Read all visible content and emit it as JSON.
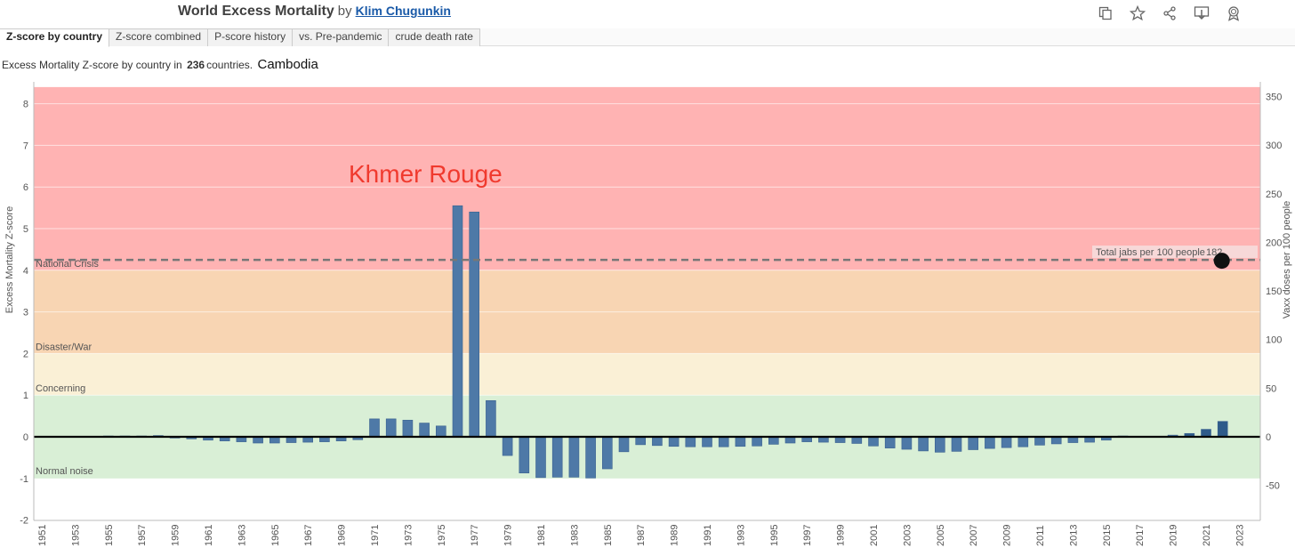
{
  "header": {
    "title": "World Excess Mortality",
    "by": "by",
    "author": "Klim Chugunkin"
  },
  "toolbar": {
    "icons": [
      "copy-icon",
      "star-icon",
      "share-icon",
      "download-icon",
      "award-icon"
    ]
  },
  "tabs": [
    {
      "label": "Z-score by country",
      "active": true
    },
    {
      "label": "Z-score combined",
      "active": false
    },
    {
      "label": "P-score history",
      "active": false
    },
    {
      "label": "vs. Pre-pandemic",
      "active": false
    },
    {
      "label": "crude death rate",
      "active": false
    }
  ],
  "subtitle": {
    "prefix": "Excess Mortality Z-score by country in",
    "count": "236",
    "suffix": "countries.",
    "country": "Cambodia"
  },
  "chart_data": {
    "type": "bar",
    "title": "Khmer Rouge",
    "ylabel": "Excess Mortality Z-score",
    "y2label": "Vaxx doses per 100 people",
    "ylim": [
      -2.1,
      8.4
    ],
    "y2lim": [
      -62,
      365
    ],
    "yticks": [
      8,
      7,
      6,
      5,
      4,
      3,
      2,
      1,
      0,
      -1,
      -2
    ],
    "y2ticks": [
      350,
      300,
      250,
      200,
      150,
      100,
      50,
      0,
      -50
    ],
    "bands": [
      {
        "label": "National Crisis",
        "from": 4,
        "to": 8.4,
        "color": "#ffb3b3"
      },
      {
        "label": "Disaster/War",
        "from": 2,
        "to": 4,
        "color": "#f8d5b3"
      },
      {
        "label": "Concerning",
        "from": 1,
        "to": 2,
        "color": "#faf0d6"
      },
      {
        "label": "Normal noise",
        "from": -1,
        "to": 1,
        "color": "#d9efd6"
      }
    ],
    "reference_line": {
      "label": "Total jabs per 100 people",
      "value_label": "182",
      "value": 182
    },
    "marker": {
      "year": 2022,
      "value": 182
    },
    "x": [
      1951,
      1952,
      1953,
      1954,
      1955,
      1956,
      1957,
      1958,
      1959,
      1960,
      1961,
      1962,
      1963,
      1964,
      1965,
      1966,
      1967,
      1968,
      1969,
      1970,
      1971,
      1972,
      1973,
      1974,
      1975,
      1976,
      1977,
      1978,
      1979,
      1980,
      1981,
      1982,
      1983,
      1984,
      1985,
      1986,
      1987,
      1988,
      1989,
      1990,
      1991,
      1992,
      1993,
      1994,
      1995,
      1996,
      1997,
      1998,
      1999,
      2000,
      2001,
      2002,
      2003,
      2004,
      2005,
      2006,
      2007,
      2008,
      2009,
      2010,
      2011,
      2012,
      2013,
      2014,
      2015,
      2016,
      2017,
      2018,
      2019,
      2020,
      2021,
      2022,
      2023
    ],
    "xticks": [
      1951,
      1953,
      1955,
      1957,
      1959,
      1961,
      1963,
      1965,
      1967,
      1969,
      1971,
      1973,
      1975,
      1977,
      1979,
      1981,
      1983,
      1985,
      1987,
      1989,
      1991,
      1993,
      1995,
      1997,
      1999,
      2001,
      2003,
      2005,
      2007,
      2009,
      2011,
      2013,
      2015,
      2017,
      2019,
      2021,
      2023
    ],
    "values": [
      0.01,
      0.01,
      0.01,
      0.01,
      0.02,
      0.02,
      0.02,
      0.03,
      -0.03,
      -0.05,
      -0.08,
      -0.1,
      -0.12,
      -0.15,
      -0.15,
      -0.14,
      -0.13,
      -0.12,
      -0.1,
      -0.07,
      0.43,
      0.43,
      0.4,
      0.33,
      0.26,
      5.55,
      5.4,
      0.87,
      -0.45,
      -0.87,
      -0.98,
      -0.97,
      -0.97,
      -0.99,
      -0.77,
      -0.36,
      -0.19,
      -0.21,
      -0.23,
      -0.24,
      -0.24,
      -0.24,
      -0.23,
      -0.22,
      -0.18,
      -0.15,
      -0.12,
      -0.13,
      -0.14,
      -0.16,
      -0.22,
      -0.27,
      -0.3,
      -0.34,
      -0.37,
      -0.35,
      -0.31,
      -0.28,
      -0.26,
      -0.24,
      -0.2,
      -0.17,
      -0.14,
      -0.13,
      -0.08,
      0.02,
      0.01,
      0.01,
      0.04,
      0.08,
      0.18,
      0.37,
      null
    ],
    "bar_color": "#4e79a7",
    "annotation": {
      "text": "Khmer Rouge",
      "color": "#f03a2e"
    }
  }
}
